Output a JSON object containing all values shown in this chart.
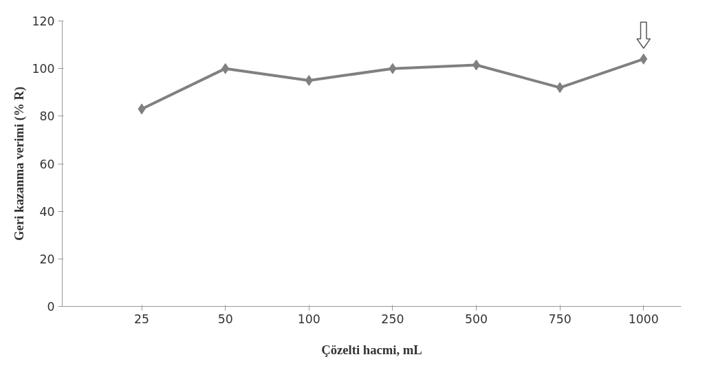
{
  "chart_data": {
    "type": "line",
    "xlabel": "Çözelti hacmi, mL",
    "ylabel": "Geri kazanma verimi (% R)",
    "categories": [
      "25",
      "50",
      "100",
      "250",
      "500",
      "750",
      "1000"
    ],
    "series": [
      {
        "color": "#808080",
        "values": [
          83,
          100,
          95,
          100,
          101.5,
          92,
          104
        ]
      }
    ],
    "ylim": [
      0,
      120
    ],
    "yticks": [
      0,
      20,
      40,
      60,
      80,
      100,
      120
    ],
    "grid": false,
    "marker": "diamond",
    "line_style": "solid"
  }
}
